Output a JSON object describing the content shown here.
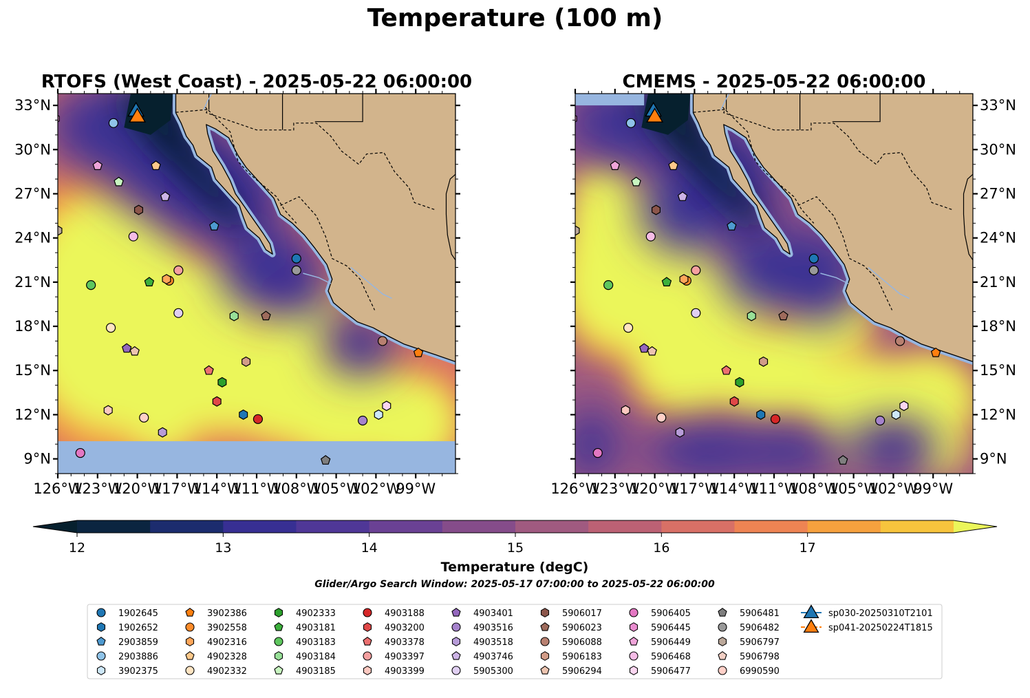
{
  "suptitle": "Temperature (100 m)",
  "panels": [
    {
      "title": "RTOFS (West Coast) - 2025-05-22 06:00:00",
      "lat_labels_side": "left",
      "missing_band_south": true
    },
    {
      "title": "CMEMS - 2025-05-22 06:00:00",
      "lat_labels_side": "right",
      "missing_band_south": false
    }
  ],
  "colorbar": {
    "label": "Temperature (degC)",
    "ticks": [
      "12",
      "13",
      "14",
      "15",
      "16",
      "17"
    ],
    "tick_values": [
      12,
      13,
      14,
      15,
      16,
      17
    ],
    "levels": [
      12.0,
      12.5,
      13.0,
      13.5,
      14.0,
      14.5,
      15.0,
      15.5,
      16.0,
      16.5,
      17.0,
      17.5
    ],
    "colors": [
      "#0b2540",
      "#1c2c6e",
      "#372f93",
      "#4f3797",
      "#6a4194",
      "#854c8a",
      "#a05a80",
      "#bc6174",
      "#d87066",
      "#ee8453",
      "#f6a13e",
      "#f7c43d"
    ],
    "under_color": "#06202e",
    "over_color": "#ebf65a",
    "extend": "both"
  },
  "search_window": "Glider/Argo Search Window: 2025-05-17 07:00:00 to 2025-05-22 06:00:00",
  "chart_data": {
    "type": "map",
    "x_axis": {
      "range": [
        -126,
        -96
      ],
      "ticks": [
        "126°W",
        "123°W",
        "120°W",
        "117°W",
        "114°W",
        "111°W",
        "108°W",
        "105°W",
        "102°W",
        "99°W"
      ],
      "tick_values": [
        -126,
        -123,
        -120,
        -117,
        -114,
        -111,
        -108,
        -105,
        -102,
        -99
      ]
    },
    "y_axis": {
      "range": [
        8,
        33.8
      ],
      "ticks": [
        "9°N",
        "12°N",
        "15°N",
        "18°N",
        "21°N",
        "24°N",
        "27°N",
        "30°N",
        "33°N"
      ],
      "tick_values": [
        9,
        12,
        15,
        18,
        21,
        24,
        27,
        30,
        33
      ]
    },
    "land_color": "#d2b48c",
    "water_color": "#97b6e0",
    "legend_location": "bottom, 9 columns",
    "floats": [
      {
        "id": "1902645",
        "marker": "circle",
        "color": "#1f77b4",
        "lon": -108.0,
        "lat": 22.6
      },
      {
        "id": "1902652",
        "marker": "hexagon",
        "color": "#1f77b4",
        "lon": -112.0,
        "lat": 12.0
      },
      {
        "id": "2903859",
        "marker": "pentagon",
        "color": "#4e9ad0",
        "lon": -114.2,
        "lat": 24.8
      },
      {
        "id": "2903886",
        "marker": "circle",
        "color": "#8fc3e8",
        "lon": -121.8,
        "lat": 31.8
      },
      {
        "id": "3902375",
        "marker": "hexagon",
        "color": "#cde7f8",
        "lon": -101.8,
        "lat": 12.0
      },
      {
        "id": "3902386",
        "marker": "pentagon",
        "color": "#ff7f0e",
        "lon": -98.8,
        "lat": 16.2
      },
      {
        "id": "3902558",
        "marker": "circle",
        "color": "#ff8c2a",
        "lon": -117.6,
        "lat": 21.1
      },
      {
        "id": "4902316",
        "marker": "hexagon",
        "color": "#ffa65a",
        "lon": -117.8,
        "lat": 21.2
      },
      {
        "id": "4902328",
        "marker": "pentagon",
        "color": "#ffc98a",
        "lon": -118.6,
        "lat": 28.9
      },
      {
        "id": "4902332",
        "marker": "circle",
        "color": "#ffe4c2",
        "lon": -122.0,
        "lat": 17.9
      },
      {
        "id": "4902333",
        "marker": "hexagon",
        "color": "#2ca02c",
        "lon": -113.6,
        "lat": 14.2
      },
      {
        "id": "4903181",
        "marker": "pentagon",
        "color": "#3cb03c",
        "lon": -119.1,
        "lat": 21.0
      },
      {
        "id": "4903183",
        "marker": "circle",
        "color": "#5ec65e",
        "lon": -123.5,
        "lat": 20.8
      },
      {
        "id": "4903184",
        "marker": "hexagon",
        "color": "#98e098",
        "lon": -112.7,
        "lat": 18.7
      },
      {
        "id": "4903185",
        "marker": "pentagon",
        "color": "#c8f5c0",
        "lon": -121.4,
        "lat": 27.8
      },
      {
        "id": "4903188",
        "marker": "circle",
        "color": "#d62728",
        "lon": -110.9,
        "lat": 11.7
      },
      {
        "id": "4903200",
        "marker": "hexagon",
        "color": "#e04848",
        "lon": -114.0,
        "lat": 12.9
      },
      {
        "id": "4903378",
        "marker": "pentagon",
        "color": "#ec7070",
        "lon": -114.6,
        "lat": 15.0
      },
      {
        "id": "4903397",
        "marker": "circle",
        "color": "#f5a0a0",
        "lon": -116.9,
        "lat": 21.8
      },
      {
        "id": "4903399",
        "marker": "hexagon",
        "color": "#fbc8c0",
        "lon": -122.2,
        "lat": 12.3
      },
      {
        "id": "4903401",
        "marker": "pentagon",
        "color": "#9467bd",
        "lon": -120.8,
        "lat": 16.5
      },
      {
        "id": "4903516",
        "marker": "circle",
        "color": "#a582cc",
        "lon": -103.0,
        "lat": 11.6
      },
      {
        "id": "4903518",
        "marker": "hexagon",
        "color": "#b79cd8",
        "lon": -118.1,
        "lat": 10.8
      },
      {
        "id": "4903746",
        "marker": "pentagon",
        "color": "#cdb4e6",
        "lon": -117.9,
        "lat": 26.8
      },
      {
        "id": "5905300",
        "marker": "circle",
        "color": "#e0cff2",
        "lon": -116.9,
        "lat": 18.9
      },
      {
        "id": "5906017",
        "marker": "hexagon",
        "color": "#8c564b",
        "lon": -119.9,
        "lat": 25.9
      },
      {
        "id": "5906023",
        "marker": "pentagon",
        "color": "#9e6b5c",
        "lon": -110.3,
        "lat": 18.7
      },
      {
        "id": "5906088",
        "marker": "circle",
        "color": "#b88070",
        "lon": -101.5,
        "lat": 17.0
      },
      {
        "id": "5906183",
        "marker": "hexagon",
        "color": "#d29c88",
        "lon": -111.8,
        "lat": 15.6
      },
      {
        "id": "5906294",
        "marker": "pentagon",
        "color": "#edc4b0",
        "lon": -120.2,
        "lat": 16.3
      },
      {
        "id": "5906405",
        "marker": "circle",
        "color": "#e377c2",
        "lon": -124.3,
        "lat": 9.4
      },
      {
        "id": "5906445",
        "marker": "hexagon",
        "color": "#e98ccf",
        "lon": -126.2,
        "lat": 32.1
      },
      {
        "id": "5906449",
        "marker": "pentagon",
        "color": "#efa4d9",
        "lon": -123.0,
        "lat": 28.9
      },
      {
        "id": "5906468",
        "marker": "circle",
        "color": "#f6bce6",
        "lon": -120.3,
        "lat": 24.1
      },
      {
        "id": "5906477",
        "marker": "hexagon",
        "color": "#fbd6f0",
        "lon": -101.2,
        "lat": 12.6
      },
      {
        "id": "5906481",
        "marker": "pentagon",
        "color": "#7f7f7f",
        "lon": -105.8,
        "lat": 8.9
      },
      {
        "id": "5906482",
        "marker": "circle",
        "color": "#999999",
        "lon": -108.0,
        "lat": 21.8
      },
      {
        "id": "5906797",
        "marker": "hexagon",
        "color": "#bba89a",
        "lon": -126.0,
        "lat": 24.5
      },
      {
        "id": "5906798",
        "marker": "pentagon",
        "color": "#f2cfc4",
        "lon": -119.9,
        "lat": 32.2
      },
      {
        "id": "6990590",
        "marker": "circle",
        "color": "#ffd0c8",
        "lon": -119.5,
        "lat": 11.8
      }
    ],
    "gliders": [
      {
        "id": "sp030-20250310T2101",
        "marker": "triangle",
        "color": "#1f77b4",
        "line_style": "solid",
        "lon": -120.1,
        "lat": 32.7
      },
      {
        "id": "sp041-20250224T1815",
        "marker": "triangle",
        "color": "#ff7f0e",
        "line_style": "dashed",
        "lon": -120.0,
        "lat": 32.3
      }
    ]
  }
}
